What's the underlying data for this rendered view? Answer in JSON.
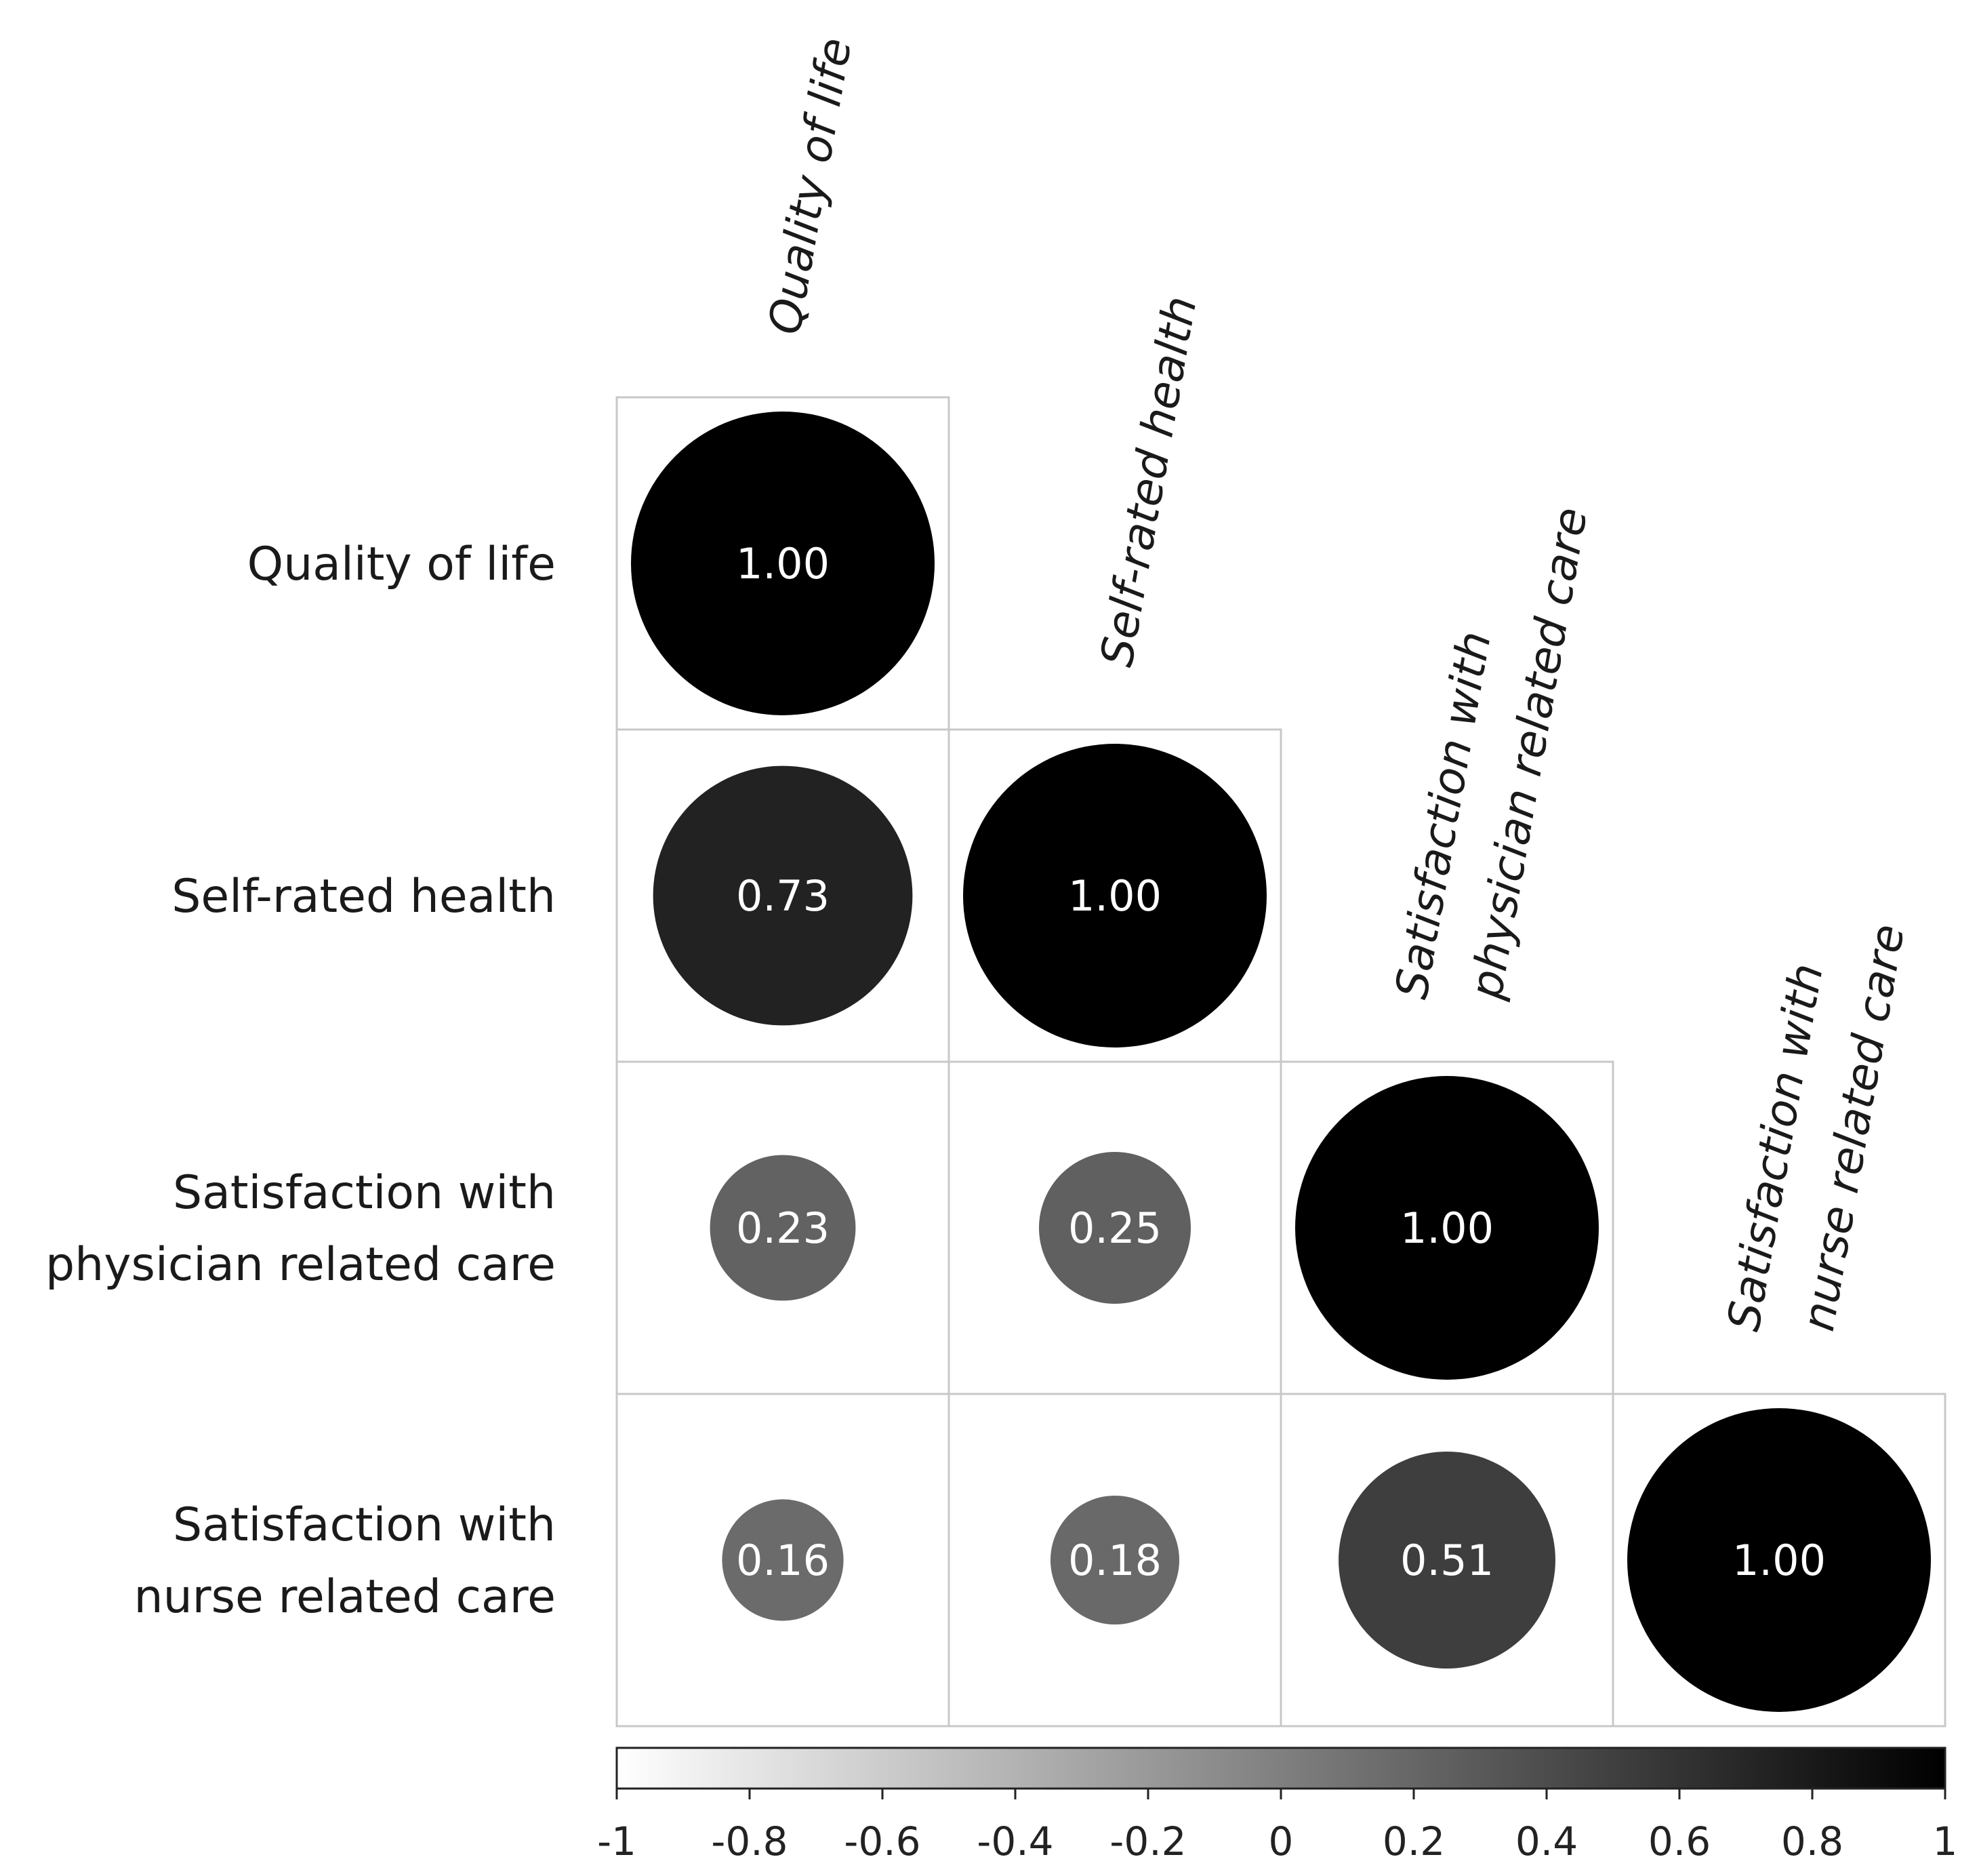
{
  "chart_data": {
    "type": "heatmap",
    "title": "",
    "variables": [
      [
        "Quality of life"
      ],
      [
        "Self-rated health"
      ],
      [
        "Satisfaction with",
        "physician related care"
      ],
      [
        "Satisfaction with",
        "nurse related care"
      ]
    ],
    "row_labels": [
      [
        "Quality of life"
      ],
      [
        "Self-rated health"
      ],
      [
        "Satisfaction with",
        "physician related care"
      ],
      [
        "Satisfaction with",
        "nurse related care"
      ]
    ],
    "col_labels": [
      [
        "Quality of life"
      ],
      [
        "Self-rated health"
      ],
      [
        "Satisfaction with",
        "physician related care"
      ],
      [
        "Satisfaction with",
        "nurse related care"
      ]
    ],
    "matrix": [
      [
        1.0,
        null,
        null,
        null
      ],
      [
        0.73,
        1.0,
        null,
        null
      ],
      [
        0.23,
        0.25,
        1.0,
        null
      ],
      [
        0.16,
        0.18,
        0.51,
        1.0
      ]
    ],
    "value_labels": [
      [
        "1.00",
        null,
        null,
        null
      ],
      [
        "0.73",
        "1.00",
        null,
        null
      ],
      [
        "0.23",
        "0.25",
        "1.00",
        null
      ],
      [
        "0.16",
        "0.18",
        "0.51",
        "1.00"
      ]
    ],
    "colorbar": {
      "range": [
        -1,
        1
      ],
      "ticks": [
        -1,
        -0.8,
        -0.6,
        -0.4,
        -0.2,
        0,
        0.2,
        0.4,
        0.6,
        0.8,
        1
      ],
      "tick_labels": [
        "-1",
        "-0.8",
        "-0.6",
        "-0.4",
        "-0.2",
        "0",
        "0.2",
        "0.4",
        "0.6",
        "0.8",
        "1"
      ],
      "low_color": "#ffffff",
      "high_color": "#000000"
    },
    "glyph": "circle",
    "layout": "lower-triangle"
  },
  "colors": {
    "cell_border": "#c8c8c8",
    "text": "#1a1a1a",
    "value_text": "#ffffff"
  }
}
